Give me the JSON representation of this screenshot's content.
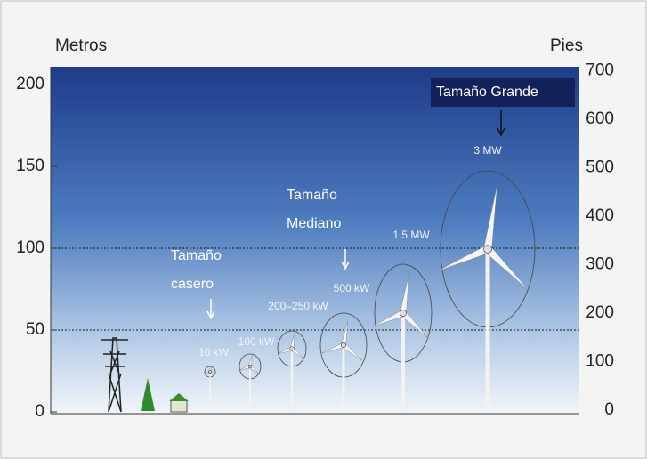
{
  "axis_left": {
    "title": "Metros",
    "ticks": [
      "0",
      "50",
      "100",
      "150",
      "200"
    ]
  },
  "axis_right": {
    "title": "Pies",
    "ticks": [
      "0",
      "100",
      "200",
      "300",
      "400",
      "500",
      "600",
      "700"
    ]
  },
  "groups": [
    {
      "label": [
        "Tamaño",
        "casero"
      ]
    },
    {
      "label": [
        "Tamaño",
        "Mediano"
      ]
    },
    {
      "label": "Tamaño Grande"
    }
  ],
  "turbines": [
    {
      "label": "10 kW"
    },
    {
      "label": "100 kW"
    },
    {
      "label": "200–250 kW"
    },
    {
      "label": "500 kW"
    },
    {
      "label": "1,5 MW"
    },
    {
      "label": "3 MW"
    }
  ]
}
